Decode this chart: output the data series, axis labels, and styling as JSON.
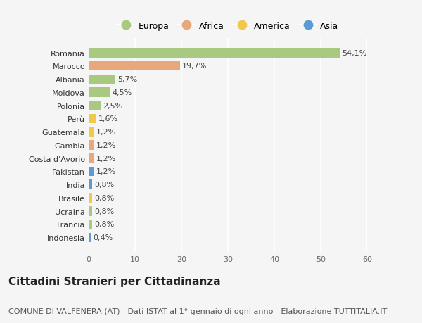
{
  "countries": [
    "Romania",
    "Marocco",
    "Albania",
    "Moldova",
    "Polonia",
    "Perù",
    "Guatemala",
    "Gambia",
    "Costa d'Avorio",
    "Pakistan",
    "India",
    "Brasile",
    "Ucraina",
    "Francia",
    "Indonesia"
  ],
  "values": [
    54.1,
    19.7,
    5.7,
    4.5,
    2.5,
    1.6,
    1.2,
    1.2,
    1.2,
    1.2,
    0.8,
    0.8,
    0.8,
    0.8,
    0.4
  ],
  "labels": [
    "54,1%",
    "19,7%",
    "5,7%",
    "4,5%",
    "2,5%",
    "1,6%",
    "1,2%",
    "1,2%",
    "1,2%",
    "1,2%",
    "0,8%",
    "0,8%",
    "0,8%",
    "0,8%",
    "0,4%"
  ],
  "continents": [
    "Europa",
    "Africa",
    "Europa",
    "Europa",
    "Europa",
    "America",
    "America",
    "Africa",
    "Africa",
    "Asia",
    "Asia",
    "America",
    "Europa",
    "Europa",
    "Asia"
  ],
  "continent_colors": {
    "Europa": "#a8c97f",
    "Africa": "#e8a87c",
    "America": "#f0c84a",
    "Asia": "#5b9bd5"
  },
  "legend_order": [
    "Europa",
    "Africa",
    "America",
    "Asia"
  ],
  "xlim": [
    0,
    60
  ],
  "xticks": [
    0,
    10,
    20,
    30,
    40,
    50,
    60
  ],
  "background_color": "#f5f5f5",
  "bar_height": 0.72,
  "title": "Cittadini Stranieri per Cittadinanza",
  "subtitle": "COMUNE DI VALFENERA (AT) - Dati ISTAT al 1° gennaio di ogni anno - Elaborazione TUTTITALIA.IT",
  "title_fontsize": 11,
  "subtitle_fontsize": 8,
  "label_fontsize": 8,
  "tick_fontsize": 8,
  "legend_fontsize": 9,
  "grid_color": "#ffffff"
}
